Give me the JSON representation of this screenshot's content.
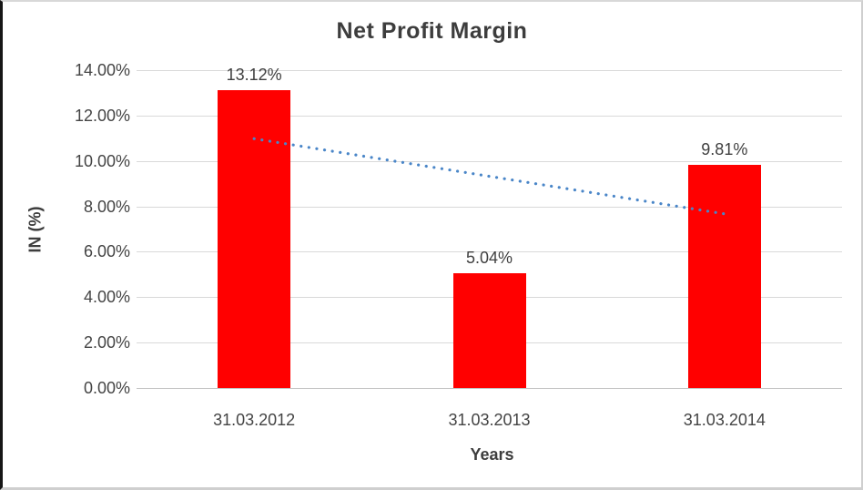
{
  "chart_data": {
    "type": "bar",
    "title": "Net Profit Margin",
    "categories": [
      "31.03.2012",
      "31.03.2013",
      "31.03.2014"
    ],
    "values": [
      13.12,
      5.04,
      9.81
    ],
    "data_labels": [
      "13.12%",
      "5.04%",
      "9.81%"
    ],
    "xlabel": "Years",
    "ylabel": "IN (%)",
    "ylim": [
      0,
      14
    ],
    "ytick_step": 2,
    "yticks": [
      "0.00%",
      "2.00%",
      "4.00%",
      "6.00%",
      "8.00%",
      "10.00%",
      "12.00%",
      "14.00%"
    ],
    "grid": true,
    "legend": "none",
    "bar_color": "#ff0000",
    "gridline_color": "#d9d9d9",
    "axis_line_color": "#c3c3c3",
    "text_color": "#404040",
    "trendline": {
      "type": "linear",
      "style": "dotted",
      "color": "#4a86c8",
      "start_value": 10.98,
      "end_value": 7.67
    }
  }
}
